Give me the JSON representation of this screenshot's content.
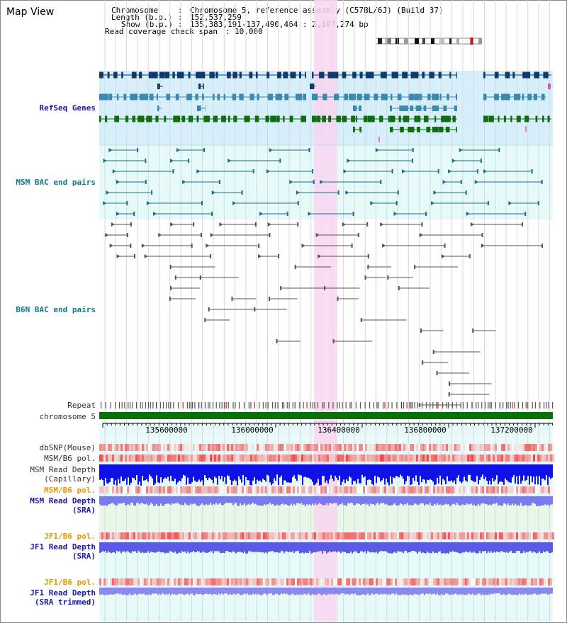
{
  "window": {
    "title": "Map View"
  },
  "info": {
    "chromosome_label": "Chromosome",
    "chromosome_value": "Chromosome 5, reference assembly (C57BL/6J) (Build 37)",
    "length_label": "Length (b.p.)",
    "length_value": "152,537,259",
    "show_label": "Show (b.p.)",
    "show_value": "135,383,191-137,490,464 : 2,107,274 bp",
    "coverage_label": "Read coverage check span",
    "coverage_value": "10,000"
  },
  "tracks": {
    "refseq": "RefSeq Genes",
    "msm_bac": "MSM BAC end pairs",
    "b6n_bac": "B6N BAC end pairs",
    "repeat": "Repeat",
    "chromosome": "chromosome 5",
    "dbsnp": "dbSNP(Mouse)",
    "msm_b6_pol_1": "MSM/B6 pol.",
    "msm_read_depth_cap": "MSM Read Depth\n(Capillary)",
    "msm_b6_pol_2": "MSM/B6 pol.",
    "msm_read_depth_sra": "MSM Read Depth\n(SRA)",
    "jf1_b6_pol_1": "JF1/B6 pol.",
    "jf1_read_depth_sra": "JF1 Read Depth\n(SRA)",
    "jf1_b6_pol_2": "JF1/B6 pol.",
    "jf1_read_depth_trim": "JF1 Read Depth\n(SRA trimmed)"
  },
  "axis": {
    "ticks": [
      "135600000",
      "136000000",
      "136400000",
      "136800000",
      "137200000"
    ]
  },
  "colors": {
    "refseq_bg": "#d6effa",
    "bac_bg": "#e6fafa",
    "highlight": "#f8d6f0",
    "gene_dark": "#0f3a6e",
    "gene_mid": "#3a8ab0",
    "gene_green": "#0f6e0f",
    "bac_line": "#16708a",
    "b6n_line": "#555555",
    "chromosome_bar": "#0a6e0a",
    "depth_blue": "#1010e8",
    "depth_light": "#6b6be8",
    "snp_red": "#e82020"
  }
}
